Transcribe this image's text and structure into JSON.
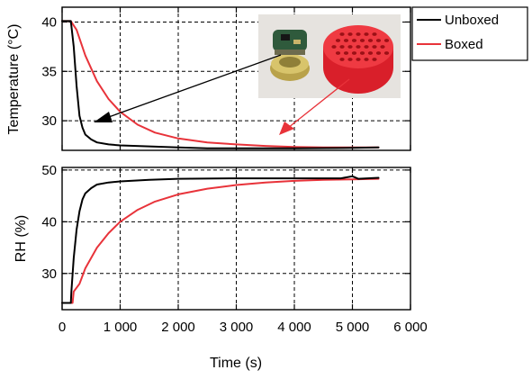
{
  "chart_data": [
    {
      "type": "line",
      "panel": "top",
      "ylabel": "Temperature (°C)",
      "xlim": [
        0,
        6000
      ],
      "ylim": [
        27,
        41.5
      ],
      "yticks": [
        30,
        35,
        40
      ],
      "xticks": [
        0,
        1000,
        2000,
        3000,
        4000,
        5000,
        6000
      ],
      "grid": true,
      "series": [
        {
          "name": "Unboxed",
          "color": "#000000",
          "x": [
            0,
            150,
            200,
            250,
            300,
            350,
            400,
            500,
            600,
            800,
            1000,
            1500,
            2000,
            2500,
            3000,
            4000,
            5000,
            5450
          ],
          "y": [
            40.1,
            40.1,
            37.5,
            33.5,
            30.5,
            29.3,
            28.6,
            28.1,
            27.8,
            27.6,
            27.5,
            27.4,
            27.3,
            27.2,
            27.2,
            27.2,
            27.25,
            27.3
          ]
        },
        {
          "name": "Boxed",
          "color": "#e8333a",
          "x": [
            0,
            150,
            250,
            400,
            600,
            800,
            1000,
            1300,
            1600,
            2000,
            2500,
            3000,
            3500,
            4000,
            4500,
            5000,
            5450
          ],
          "y": [
            40.1,
            40.1,
            39.2,
            36.6,
            34.0,
            32.2,
            30.9,
            29.6,
            28.8,
            28.2,
            27.8,
            27.6,
            27.45,
            27.35,
            27.3,
            27.3,
            27.3
          ]
        }
      ]
    },
    {
      "type": "line",
      "panel": "bottom",
      "xlabel": "Time (s)",
      "ylabel": "RH (%)",
      "xlim": [
        0,
        6000
      ],
      "ylim": [
        23,
        50.5
      ],
      "yticks": [
        30,
        40,
        50
      ],
      "xticks": [
        0,
        1000,
        2000,
        3000,
        4000,
        5000,
        6000
      ],
      "grid": true,
      "series": [
        {
          "name": "Unboxed",
          "color": "#000000",
          "x": [
            0,
            150,
            160,
            200,
            250,
            300,
            350,
            400,
            500,
            600,
            800,
            1000,
            1500,
            2000,
            3000,
            4000,
            4800,
            5000,
            5100,
            5450
          ],
          "y": [
            24.3,
            24.3,
            26.5,
            33.0,
            38.5,
            42.0,
            44.3,
            45.5,
            46.5,
            47.2,
            47.6,
            47.8,
            48.1,
            48.3,
            48.4,
            48.4,
            48.4,
            48.8,
            48.3,
            48.5
          ]
        },
        {
          "name": "Boxed",
          "color": "#e8333a",
          "x": [
            0,
            180,
            200,
            300,
            400,
            600,
            800,
            1000,
            1300,
            1600,
            2000,
            2500,
            3000,
            3500,
            4000,
            4500,
            5000,
            5450
          ],
          "y": [
            24.3,
            24.3,
            26.5,
            28.0,
            31.0,
            35.0,
            37.8,
            40.0,
            42.3,
            43.9,
            45.3,
            46.4,
            47.1,
            47.6,
            47.9,
            48.1,
            48.2,
            48.3
          ]
        }
      ]
    }
  ],
  "xtick_labels": [
    "0",
    "1 000",
    "2 000",
    "3 000",
    "4 000",
    "5 000",
    "6 000"
  ],
  "legend": {
    "placement": "top-right-outside",
    "entries": [
      {
        "label": "Unboxed",
        "color": "#000000"
      },
      {
        "label": "Boxed",
        "color": "#e8333a"
      }
    ]
  }
}
